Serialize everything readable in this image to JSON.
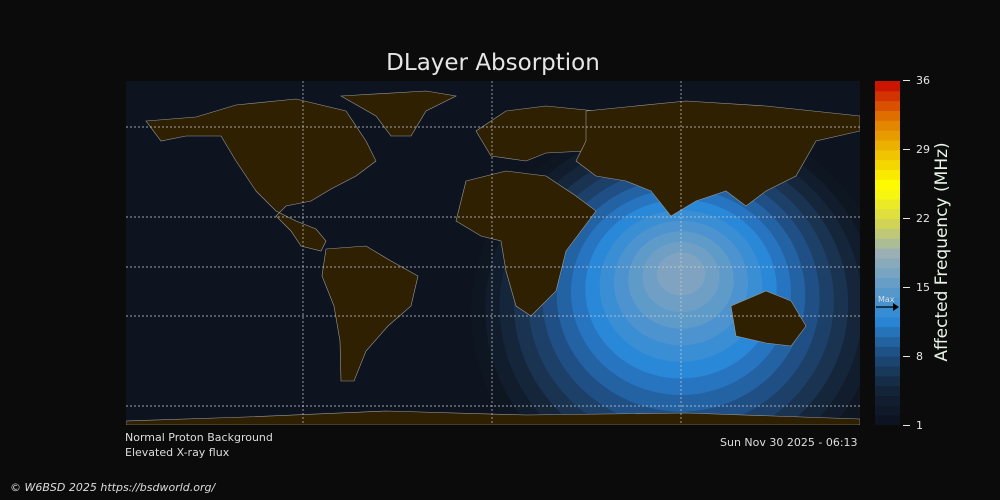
{
  "title": "DLayer Absorption",
  "colorbar": {
    "label": "Affected Frequency (MHz)",
    "min": 1,
    "max": 36,
    "ticks": [
      "36",
      "29",
      "22",
      "15",
      "8",
      "1"
    ],
    "max_marker_label": "Max",
    "max_marker_value": 13,
    "color_stops": [
      "#0d1320",
      "#15263b",
      "#1d4e80",
      "#2a88d8",
      "#5f9cc9",
      "#9ab0b4",
      "#d8d84a",
      "#ffff00",
      "#f0c000",
      "#e07a00",
      "#cc1500"
    ]
  },
  "map": {
    "ocean_color": "#0d1420",
    "land_color": "#2e2000",
    "absorption_center_color": "#7fa3c0"
  },
  "notes": {
    "proton": "Normal Proton Background",
    "xray": "Elevated X-ray flux",
    "timestamp": "Sun Nov 30 2025 - 06:13"
  },
  "footer": "© W6BSD 2025 https://bsdworld.org/"
}
